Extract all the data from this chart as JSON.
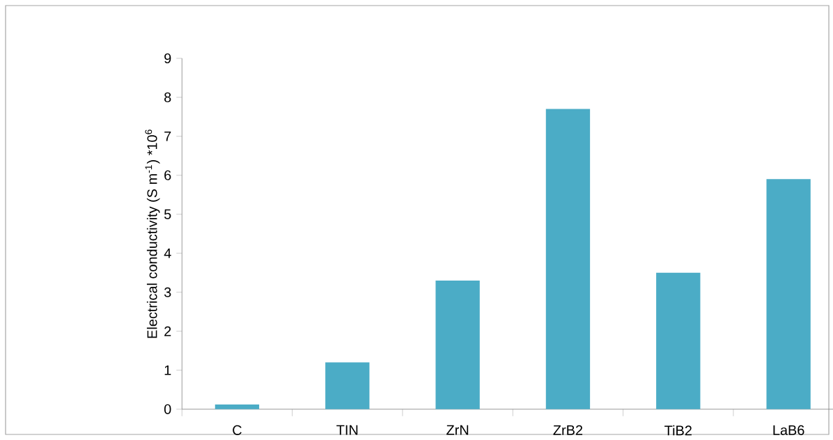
{
  "chart_data": {
    "type": "bar",
    "ylabel": "Electrical  conductivity (S m$^{-1}$) *10$^{6}$",
    "categories": [
      "C",
      "TIN",
      "ZrN",
      "ZrB2",
      "TiB2",
      "LaB6"
    ],
    "values": [
      0.12,
      1.2,
      3.3,
      7.7,
      3.5,
      5.9
    ],
    "color": "#4bacc6",
    "ylim": [
      0,
      9
    ],
    "yticks": [
      0,
      1,
      2,
      3,
      4,
      5,
      6,
      7,
      8,
      9
    ]
  }
}
